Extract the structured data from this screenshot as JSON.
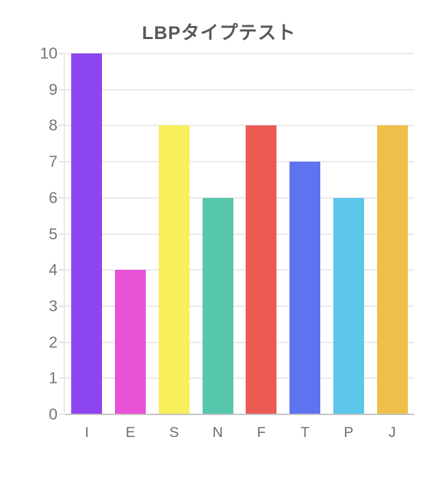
{
  "chart_data": {
    "type": "bar",
    "title": "LBPタイプテスト",
    "categories": [
      "I",
      "E",
      "S",
      "N",
      "F",
      "T",
      "P",
      "J"
    ],
    "values": [
      10,
      4,
      8,
      6,
      8,
      7,
      6,
      8
    ],
    "bar_colors": [
      "#8d45ef",
      "#e951d6",
      "#f9ef5c",
      "#57c7ac",
      "#eb5b54",
      "#5d73ef",
      "#5fc6eb",
      "#f0bf4a"
    ],
    "xlabel": "",
    "ylabel": "",
    "ylim": [
      0,
      10
    ],
    "yticks": [
      0,
      1,
      2,
      3,
      4,
      5,
      6,
      7,
      8,
      9,
      10
    ],
    "grid": "horizontal",
    "legend": "none",
    "colors": {
      "title_text": "#58585a",
      "axis_label_text": "#757575",
      "gridline": "#e9e9e9",
      "baseline": "#c3c3c3",
      "background": "#ffffff"
    }
  }
}
